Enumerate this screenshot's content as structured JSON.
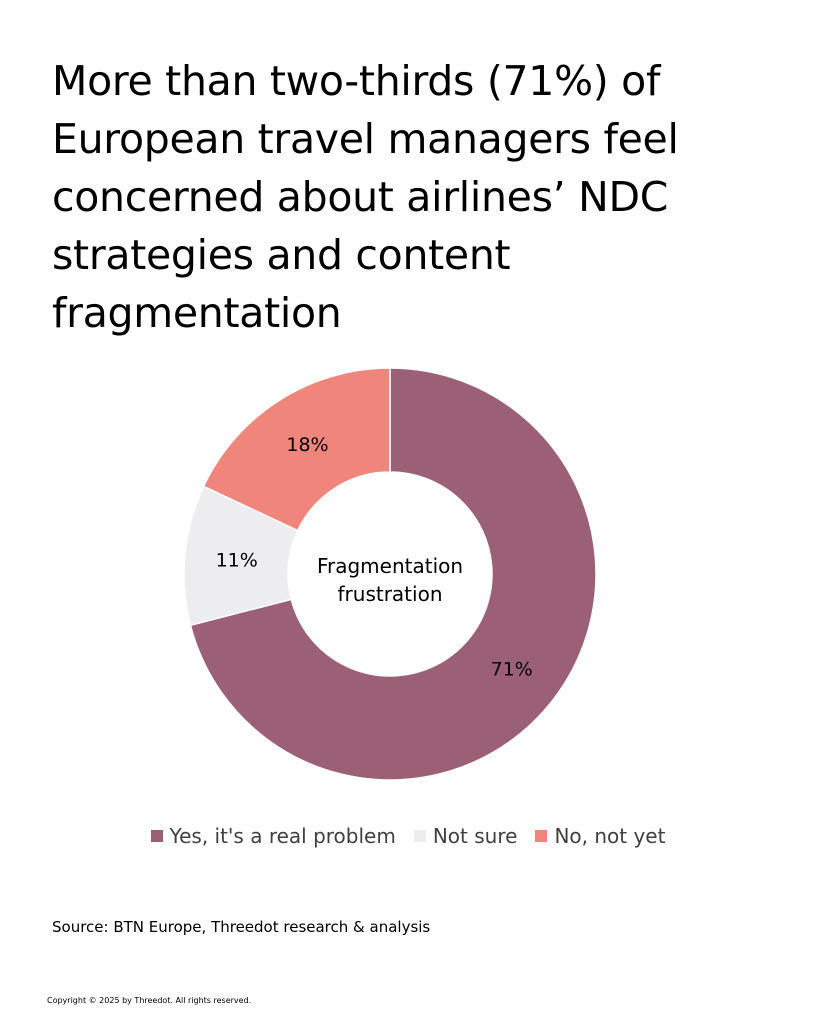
{
  "title_lines": [
    "More than two-thirds (71%) of",
    "European travel managers feel",
    "concerned about airlines’ NDC",
    "strategies and content",
    "fragmentation"
  ],
  "chart_data": {
    "type": "pie",
    "donut": true,
    "center_label": [
      "Fragmentation",
      "frustration"
    ],
    "start": "12 o'clock",
    "direction": "clockwise",
    "slices": [
      {
        "label": "Yes, it's a real problem",
        "value": 71,
        "display": "71%",
        "color": "#9b5f76"
      },
      {
        "label": "Not sure",
        "value": 11,
        "display": "11%",
        "color": "#ededf0"
      },
      {
        "label": "No, not yet",
        "value": 18,
        "display": "18%",
        "color": "#f0857b"
      }
    ],
    "legend_position": "bottom"
  },
  "source": "Source: BTN Europe, Threedot research & analysis",
  "copyright": "Copyright © 2025 by Threedot. All rights reserved."
}
